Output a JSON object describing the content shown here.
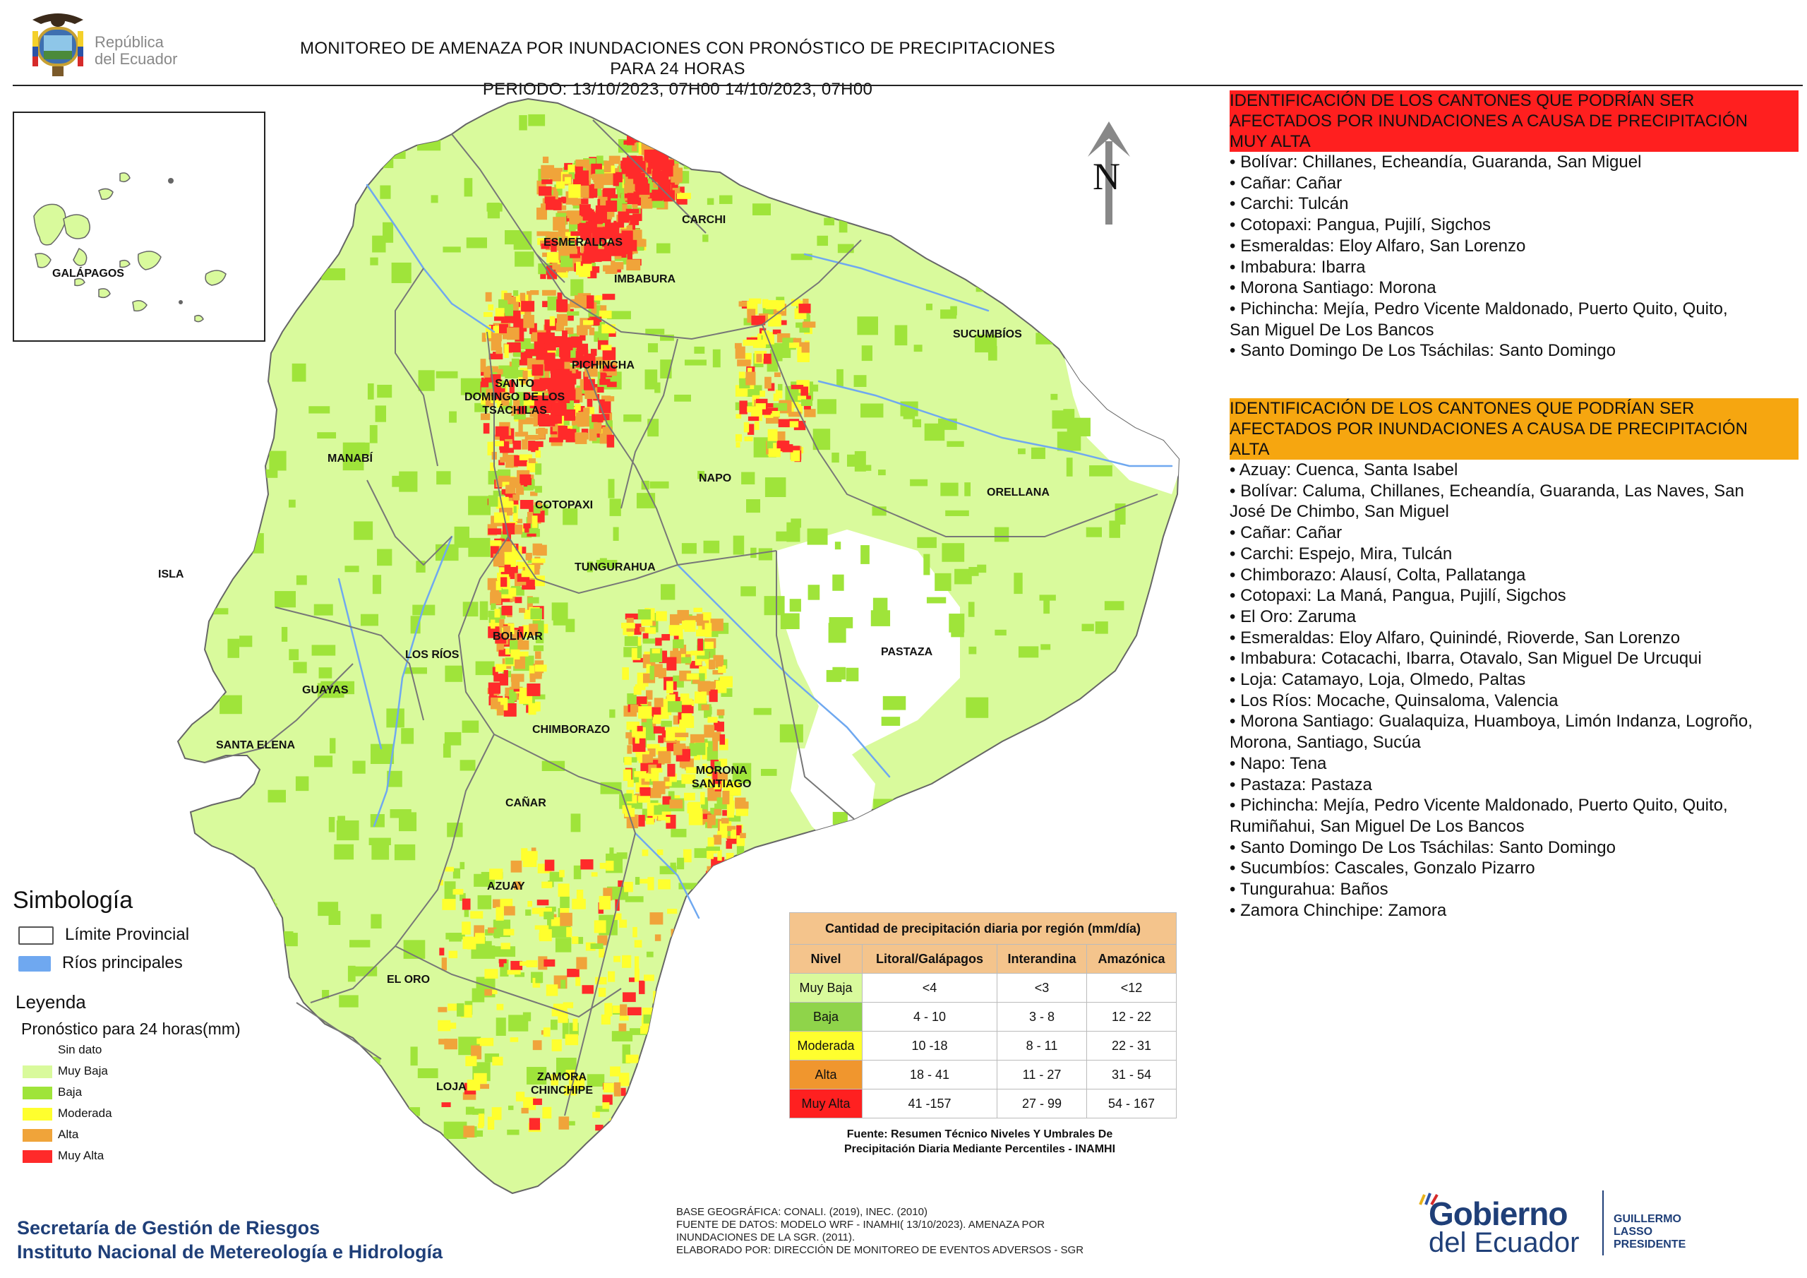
{
  "header": {
    "republic_line1": "República",
    "republic_line2": "del Ecuador",
    "title_line1": "MONITOREO DE AMENAZA POR INUNDACIONES  CON PRONÓSTICO DE  PRECIPITACIONES PARA 24 HORAS",
    "title_line2": "PERIODO: 13/10/2023, 07H00 14/10/2023, 07H00"
  },
  "map": {
    "north_label": "N",
    "inset_label": "GALÁPAGOS",
    "provinces": {
      "esmeraldas": "ESMERALDAS",
      "carchi": "CARCHI",
      "imbabura": "IMBABURA",
      "sucumbios": "SUCUMBÍOS",
      "pichincha": "PICHINCHA",
      "santo_domingo": [
        "SANTO",
        "DOMINGO DE LOS",
        "TSÁCHILAS"
      ],
      "manabi": "MANABÍ",
      "napo": "NAPO",
      "orellana": "ORELLANA",
      "cotopaxi": "COTOPAXI",
      "isla": "ISLA",
      "tungurahua": "TUNGURAHUA",
      "bolivar": "BOLÍVAR",
      "los_rios": "LOS RÍOS",
      "guayas": "GUAYAS",
      "pastaza": "PASTAZA",
      "santa_elena": "SANTA ELENA",
      "chimborazo": "CHIMBORAZO",
      "morona_santiago": [
        "MORONA",
        "SANTIAGO"
      ],
      "canar": "CAÑAR",
      "azuay": "AZUAY",
      "el_oro": "EL ORO",
      "loja": "LOJA",
      "zamora_chinchipe": [
        "ZAMORA",
        "CHINCHIPE"
      ]
    }
  },
  "muy_alta": {
    "heading_lines": [
      "IDENTIFICACIÓN DE LOS CANTONES QUE PODRÍAN SER",
      "AFECTADOS POR INUNDACIONES  A CAUSA DE PRECIPITACIÓN",
      "MUY ALTA"
    ],
    "color": "#ff1f1f",
    "items": [
      "• Bolívar: Chillanes, Echeandía, Guaranda, San Miguel",
      "• Cañar: Cañar",
      "• Carchi: Tulcán",
      "• Cotopaxi: Pangua, Pujilí, Sigchos",
      "• Esmeraldas: Eloy Alfaro, San Lorenzo",
      "• Imbabura: Ibarra",
      "• Morona Santiago: Morona",
      "• Pichincha: Mejía, Pedro Vicente Maldonado, Puerto Quito, Quito,",
      "San Miguel De Los Bancos",
      "• Santo Domingo De Los Tsáchilas: Santo Domingo"
    ]
  },
  "alta": {
    "heading_lines": [
      "IDENTIFICACIÓN DE LOS CANTONES QUE  PODRÍAN SER",
      "AFECTADOS POR INUNDACIONES  A CAUSA DE PRECIPITACIÓN",
      "ALTA"
    ],
    "color": "#f6a610",
    "items": [
      "• Azuay: Cuenca, Santa Isabel",
      "• Bolívar: Caluma, Chillanes, Echeandía, Guaranda, Las Naves, San",
      "José De Chimbo, San Miguel",
      "• Cañar: Cañar",
      "• Carchi: Espejo, Mira, Tulcán",
      "• Chimborazo: Alausí, Colta, Pallatanga",
      "• Cotopaxi: La Maná, Pangua, Pujilí, Sigchos",
      "• El Oro: Zaruma",
      "• Esmeraldas: Eloy Alfaro, Quinindé, Rioverde, San Lorenzo",
      "• Imbabura: Cotacachi, Ibarra, Otavalo, San Miguel De Urcuqui",
      "• Loja: Catamayo, Loja, Olmedo, Paltas",
      "• Los Ríos: Mocache, Quinsaloma, Valencia",
      "• Morona Santiago: Gualaquiza, Huamboya, Limón Indanza, Logroño,",
      "Morona, Santiago, Sucúa",
      "• Napo: Tena",
      "• Pastaza: Pastaza",
      "• Pichincha: Mejía, Pedro Vicente Maldonado, Puerto Quito, Quito,",
      "Rumiñahui, San Miguel De Los Bancos",
      "• Santo Domingo De Los Tsáchilas: Santo Domingo",
      "• Sucumbíos: Cascales, Gonzalo Pizarro",
      "• Tungurahua: Baños",
      "• Zamora Chinchipe: Zamora"
    ]
  },
  "simbologia": {
    "title": "Simbología",
    "items": [
      {
        "label": "Límite Provincial",
        "fill": "#ffffff",
        "stroke": "#555555"
      },
      {
        "label": "Ríos principales",
        "fill": "#6fa8f0",
        "stroke": "#6fa8f0"
      }
    ]
  },
  "leyenda": {
    "title": "Leyenda",
    "subtitle": "Pronóstico para 24 horas(mm)",
    "items": [
      {
        "label": "Sin dato",
        "color": "#ffffff"
      },
      {
        "label": "Muy Baja",
        "color": "#d9fa9c"
      },
      {
        "label": "Baja",
        "color": "#9fe43a"
      },
      {
        "label": "Moderada",
        "color": "#ffff2e"
      },
      {
        "label": "Alta",
        "color": "#f0a43a"
      },
      {
        "label": "Muy Alta",
        "color": "#ff2a2a"
      }
    ]
  },
  "precip_table": {
    "caption": "Cantidad de precipitación diaria por región (mm/día)",
    "headers": [
      "Nivel",
      "Litoral/Galápagos",
      "Interandina",
      "Amazónica"
    ],
    "rows": [
      {
        "nivel": "Muy Baja",
        "color": "#d9fa9c",
        "values": [
          "<4",
          "<3",
          "<12"
        ]
      },
      {
        "nivel": "Baja",
        "color": "#8fd44a",
        "values": [
          "4 - 10",
          "3 - 8",
          "12 - 22"
        ]
      },
      {
        "nivel": "Moderada",
        "color": "#ffff2e",
        "values": [
          "10 -18",
          "8 - 11",
          "22 - 31"
        ]
      },
      {
        "nivel": "Alta",
        "color": "#f0962e",
        "values": [
          "18 - 41",
          "11 - 27",
          "31 - 54"
        ]
      },
      {
        "nivel": "Muy Alta",
        "color": "#ff2020",
        "values": [
          "41 -157",
          "27 - 99",
          "54 - 167"
        ]
      }
    ],
    "source_line1": "Fuente: Resumen Técnico Niveles Y Umbrales De",
    "source_line2": "Precipitación Diaria Mediante Percentiles - INAMHI"
  },
  "footer": {
    "agency1": "Secretaría de Gestión de Riesgos",
    "agency2": "Instituto Nacional de Metereología e Hidrología",
    "notes": [
      "BASE GEOGRÁFICA: CONALI. (2019), INEC. (2010)",
      "FUENTE DE DATOS: MODELO WRF - INAMHI( 13/10/2023).  AMENAZA POR",
      "INUNDACIONES DE LA SGR. (2011).",
      "ELABORADO POR: DIRECCIÓN DE MONITOREO DE EVENTOS ADVERSOS - SGR"
    ],
    "gob_word1": "Gobierno",
    "gob_word2": "del Ecuador",
    "president_name": "GUILLERMO LASSO",
    "president_role": "PRESIDENTE"
  }
}
